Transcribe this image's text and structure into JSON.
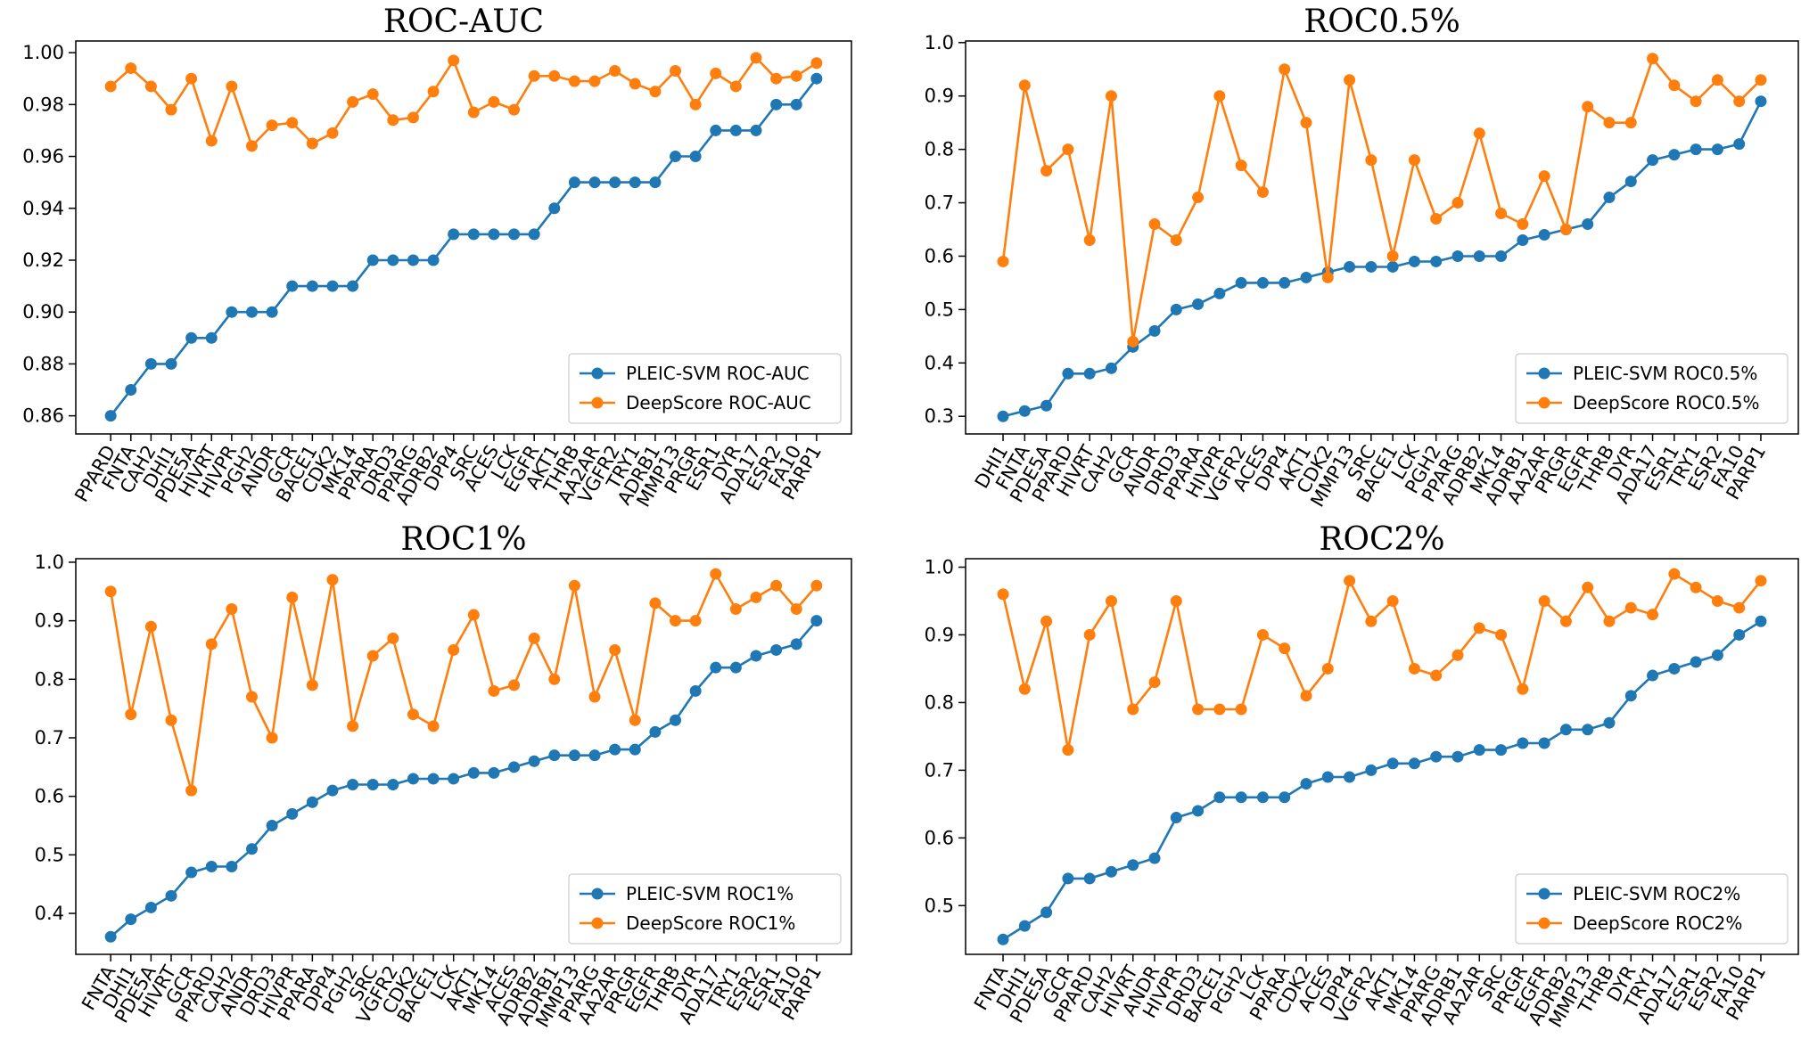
{
  "chart_data": [
    {
      "type": "line",
      "title": "ROC-AUC",
      "categories": [
        "PPARD",
        "FNTA",
        "CAH2",
        "DHI1",
        "PDE5A",
        "HIVRT",
        "HIVPR",
        "PGH2",
        "ANDR",
        "GCR",
        "BACE1",
        "CDK2",
        "MK14",
        "PPARA",
        "DRD3",
        "PPARG",
        "ADRB2",
        "DPP4",
        "SRC",
        "ACES",
        "LCK",
        "EGFR",
        "AKT1",
        "THRB",
        "AA2AR",
        "VGFR2",
        "TRY1",
        "ADRB1",
        "MMP13",
        "PRGR",
        "ESR1",
        "DYR",
        "ADA17",
        "ESR2",
        "FA10",
        "PARP1"
      ],
      "series": [
        {
          "name": "PLEIC-SVM ROC-AUC",
          "color": "#1f77b4",
          "values": [
            0.86,
            0.87,
            0.88,
            0.88,
            0.89,
            0.89,
            0.9,
            0.9,
            0.9,
            0.91,
            0.91,
            0.91,
            0.91,
            0.92,
            0.92,
            0.92,
            0.92,
            0.93,
            0.93,
            0.93,
            0.93,
            0.93,
            0.94,
            0.95,
            0.95,
            0.95,
            0.95,
            0.95,
            0.96,
            0.96,
            0.97,
            0.97,
            0.97,
            0.98,
            0.98,
            0.99
          ]
        },
        {
          "name": "DeepScore ROC-AUC",
          "color": "#ff7f0e",
          "values": [
            0.987,
            0.994,
            0.987,
            0.978,
            0.99,
            0.966,
            0.987,
            0.964,
            0.972,
            0.973,
            0.965,
            0.969,
            0.981,
            0.984,
            0.974,
            0.975,
            0.985,
            0.997,
            0.977,
            0.981,
            0.978,
            0.991,
            0.991,
            0.989,
            0.989,
            0.993,
            0.988,
            0.985,
            0.993,
            0.98,
            0.992,
            0.987,
            0.998,
            0.99,
            0.991,
            0.996
          ]
        }
      ],
      "yticks": [
        "0.86",
        "0.88",
        "0.90",
        "0.92",
        "0.94",
        "0.96",
        "0.98",
        "1.00"
      ],
      "ylim": [
        0.853,
        1.0045
      ],
      "legend_position": "bottom-right"
    },
    {
      "type": "line",
      "title": "ROC0.5%",
      "categories": [
        "DHI1",
        "FNTA",
        "PDE5A",
        "PPARD",
        "HIVRT",
        "CAH2",
        "GCR",
        "ANDR",
        "DRD3",
        "PPARA",
        "HIVPR",
        "VGFR2",
        "ACES",
        "DPP4",
        "AKT1",
        "CDK2",
        "MMP13",
        "SRC",
        "BACE1",
        "LCK",
        "PGH2",
        "PPARG",
        "ADRB2",
        "MK14",
        "ADRB1",
        "AA2AR",
        "PRGR",
        "EGFR",
        "THRB",
        "DYR",
        "ADA17",
        "ESR1",
        "TRY1",
        "ESR2",
        "FA10",
        "PARP1"
      ],
      "series": [
        {
          "name": "PLEIC-SVM ROC0.5%",
          "color": "#1f77b4",
          "values": [
            0.3,
            0.31,
            0.32,
            0.38,
            0.38,
            0.39,
            0.43,
            0.46,
            0.5,
            0.51,
            0.53,
            0.55,
            0.55,
            0.55,
            0.56,
            0.57,
            0.58,
            0.58,
            0.58,
            0.59,
            0.59,
            0.6,
            0.6,
            0.6,
            0.63,
            0.64,
            0.65,
            0.66,
            0.71,
            0.74,
            0.78,
            0.79,
            0.8,
            0.8,
            0.81,
            0.89
          ]
        },
        {
          "name": "DeepScore ROC0.5%",
          "color": "#ff7f0e",
          "values": [
            0.59,
            0.92,
            0.76,
            0.8,
            0.63,
            0.9,
            0.44,
            0.66,
            0.63,
            0.71,
            0.9,
            0.77,
            0.72,
            0.95,
            0.85,
            0.56,
            0.93,
            0.78,
            0.6,
            0.78,
            0.67,
            0.7,
            0.83,
            0.68,
            0.66,
            0.75,
            0.65,
            0.88,
            0.85,
            0.85,
            0.97,
            0.92,
            0.89,
            0.93,
            0.89,
            0.93
          ]
        }
      ],
      "yticks": [
        "0.3",
        "0.4",
        "0.5",
        "0.6",
        "0.7",
        "0.8",
        "0.9",
        "1.0"
      ],
      "ylim": [
        0.267,
        1.003
      ],
      "legend_position": "bottom-right"
    },
    {
      "type": "line",
      "title": "ROC1%",
      "categories": [
        "FNTA",
        "DHI1",
        "PDE5A",
        "HIVRT",
        "GCR",
        "PPARD",
        "CAH2",
        "ANDR",
        "DRD3",
        "HIVPR",
        "PPARA",
        "DPP4",
        "PGH2",
        "SRC",
        "VGFR2",
        "CDK2",
        "BACE1",
        "LCK",
        "AKT1",
        "MK14",
        "ACES",
        "ADRB2",
        "ADRB1",
        "MMP13",
        "PPARG",
        "AA2AR",
        "PRGR",
        "EGFR",
        "THRB",
        "DYR",
        "ADA17",
        "TRY1",
        "ESR2",
        "ESR1",
        "FA10",
        "PARP1"
      ],
      "series": [
        {
          "name": "PLEIC-SVM ROC1%",
          "color": "#1f77b4",
          "values": [
            0.36,
            0.39,
            0.41,
            0.43,
            0.47,
            0.48,
            0.48,
            0.51,
            0.55,
            0.57,
            0.59,
            0.61,
            0.62,
            0.62,
            0.62,
            0.63,
            0.63,
            0.63,
            0.64,
            0.64,
            0.65,
            0.66,
            0.67,
            0.67,
            0.67,
            0.68,
            0.68,
            0.71,
            0.73,
            0.78,
            0.82,
            0.82,
            0.84,
            0.85,
            0.86,
            0.9
          ]
        },
        {
          "name": "DeepScore ROC1%",
          "color": "#ff7f0e",
          "values": [
            0.95,
            0.74,
            0.89,
            0.73,
            0.61,
            0.86,
            0.92,
            0.77,
            0.7,
            0.94,
            0.79,
            0.97,
            0.72,
            0.84,
            0.87,
            0.74,
            0.72,
            0.85,
            0.91,
            0.78,
            0.79,
            0.87,
            0.8,
            0.96,
            0.77,
            0.85,
            0.73,
            0.93,
            0.9,
            0.9,
            0.98,
            0.92,
            0.94,
            0.96,
            0.92,
            0.96
          ]
        }
      ],
      "yticks": [
        "0.4",
        "0.5",
        "0.6",
        "0.7",
        "0.8",
        "0.9",
        "1.0"
      ],
      "ylim": [
        0.33,
        1.006
      ],
      "legend_position": "bottom-right"
    },
    {
      "type": "line",
      "title": "ROC2%",
      "categories": [
        "FNTA",
        "DHI1",
        "PDE5A",
        "GCR",
        "PPARD",
        "CAH2",
        "HIVRT",
        "ANDR",
        "HIVPR",
        "DRD3",
        "BACE1",
        "PGH2",
        "LCK",
        "PPARA",
        "CDK2",
        "ACES",
        "DPP4",
        "VGFR2",
        "AKT1",
        "MK14",
        "PPARG",
        "ADRB1",
        "AA2AR",
        "SRC",
        "PRGR",
        "EGFR",
        "ADRB2",
        "MMP13",
        "THRB",
        "DYR",
        "TRY1",
        "ADA17",
        "ESR1",
        "ESR2",
        "FA10",
        "PARP1"
      ],
      "series": [
        {
          "name": "PLEIC-SVM ROC2%",
          "color": "#1f77b4",
          "values": [
            0.45,
            0.47,
            0.49,
            0.54,
            0.54,
            0.55,
            0.56,
            0.57,
            0.63,
            0.64,
            0.66,
            0.66,
            0.66,
            0.66,
            0.68,
            0.69,
            0.69,
            0.7,
            0.71,
            0.71,
            0.72,
            0.72,
            0.73,
            0.73,
            0.74,
            0.74,
            0.76,
            0.76,
            0.77,
            0.81,
            0.84,
            0.85,
            0.86,
            0.87,
            0.9,
            0.92
          ]
        },
        {
          "name": "DeepScore ROC2%",
          "color": "#ff7f0e",
          "values": [
            0.96,
            0.82,
            0.92,
            0.73,
            0.9,
            0.95,
            0.79,
            0.83,
            0.95,
            0.79,
            0.79,
            0.79,
            0.9,
            0.88,
            0.81,
            0.85,
            0.98,
            0.92,
            0.95,
            0.85,
            0.84,
            0.87,
            0.91,
            0.9,
            0.82,
            0.95,
            0.92,
            0.97,
            0.92,
            0.94,
            0.93,
            0.99,
            0.97,
            0.95,
            0.94,
            0.98
          ]
        }
      ],
      "yticks": [
        "0.5",
        "0.6",
        "0.7",
        "0.8",
        "0.9",
        "1.0"
      ],
      "ylim": [
        0.428,
        1.0125
      ],
      "legend_position": "bottom-right"
    }
  ]
}
